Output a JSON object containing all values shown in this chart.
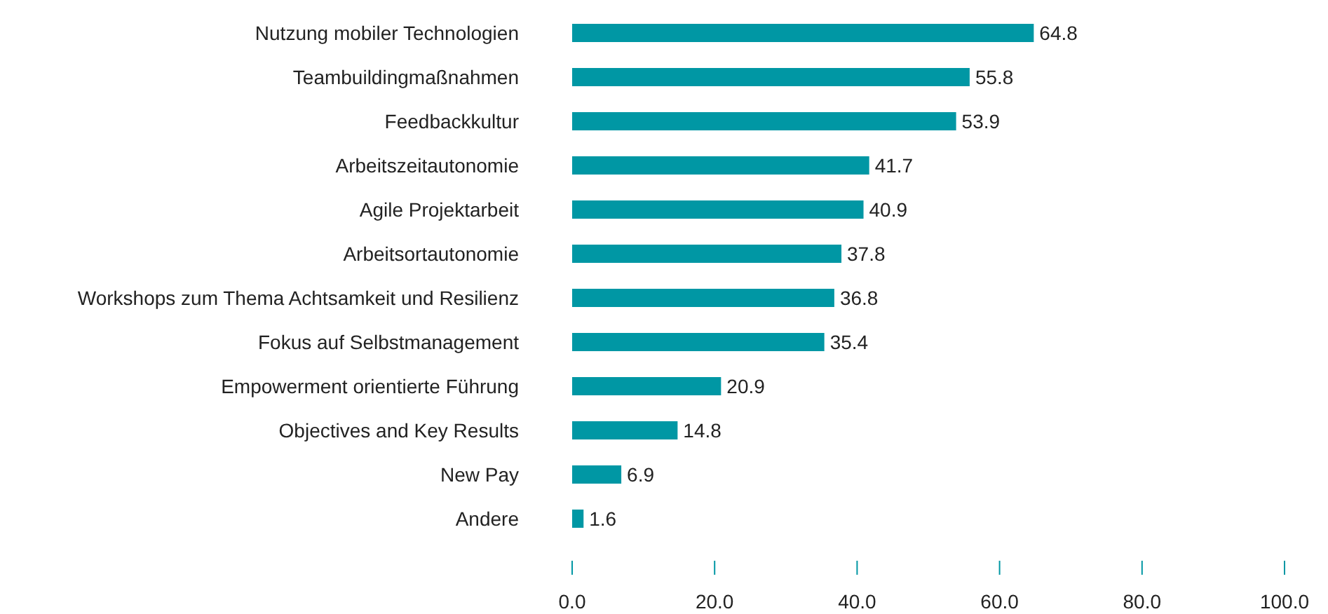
{
  "chart_data": {
    "type": "bar",
    "orientation": "horizontal",
    "categories": [
      "Nutzung mobiler Technologien",
      "Teambuildingmaßnahmen",
      "Feedbackkultur",
      "Arbeitszeitautonomie",
      "Agile Projektarbeit",
      "Arbeitsortautonomie",
      "Workshops zum Thema Achtsamkeit und Resilienz",
      "Fokus auf Selbstmanagement",
      "Empowerment orientierte Führung",
      "Objectives and Key Results",
      "New Pay",
      "Andere"
    ],
    "values": [
      64.8,
      55.8,
      53.9,
      41.7,
      40.9,
      37.8,
      36.8,
      35.4,
      20.9,
      14.8,
      6.9,
      1.6
    ],
    "color": "#0097a4",
    "xlim": [
      0,
      100
    ],
    "xticks": [
      {
        "value": 0,
        "label": "0.0"
      },
      {
        "value": 20,
        "label": "20.0"
      },
      {
        "value": 40,
        "label": "40.0"
      },
      {
        "value": 60,
        "label": "60.0"
      },
      {
        "value": 80,
        "label": "80.0"
      },
      {
        "value": 100,
        "label": "100.0"
      }
    ],
    "data_labels": true,
    "grid": false,
    "legend": false
  }
}
